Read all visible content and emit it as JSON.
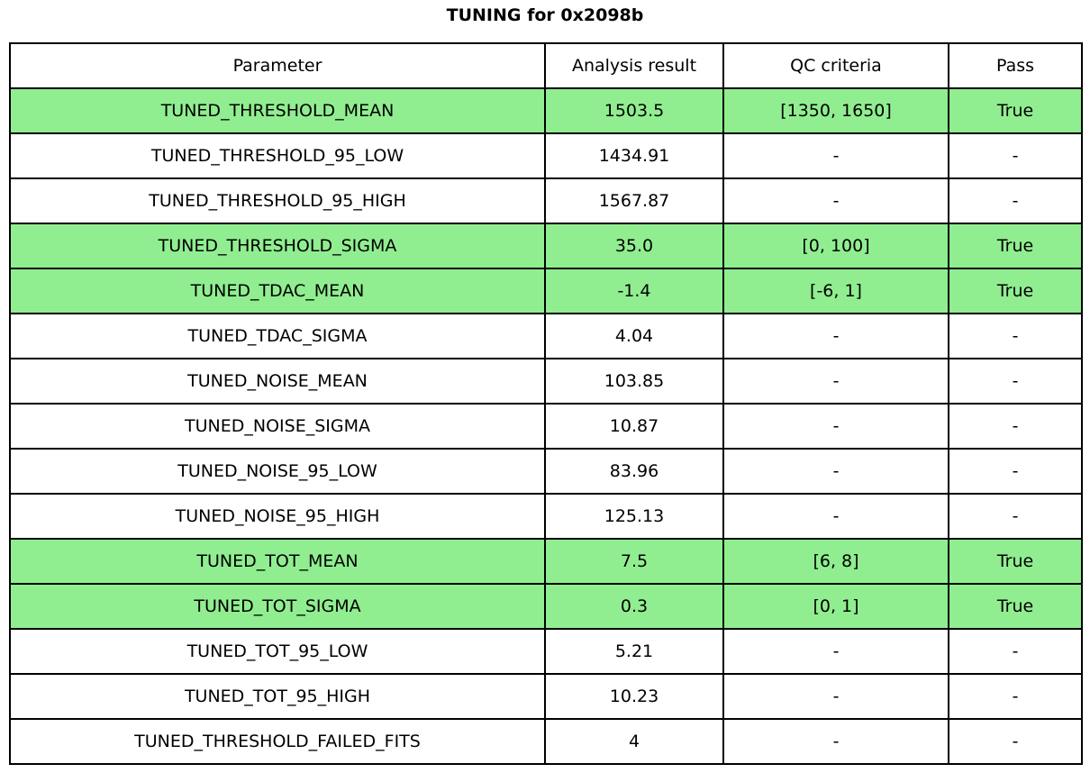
{
  "title": "TUNING for 0x2098b",
  "colors": {
    "highlight": "#90ee90",
    "border": "#000000",
    "background": "#ffffff",
    "text": "#000000"
  },
  "chart_data": {
    "type": "table",
    "title": "TUNING for 0x2098b",
    "columns": [
      "Parameter",
      "Analysis result",
      "QC criteria",
      "Pass"
    ],
    "rows": [
      {
        "parameter": "TUNED_THRESHOLD_MEAN",
        "result": "1503.5",
        "criteria": "[1350, 1650]",
        "pass": "True",
        "highlight": true
      },
      {
        "parameter": "TUNED_THRESHOLD_95_LOW",
        "result": "1434.91",
        "criteria": "-",
        "pass": "-",
        "highlight": false
      },
      {
        "parameter": "TUNED_THRESHOLD_95_HIGH",
        "result": "1567.87",
        "criteria": "-",
        "pass": "-",
        "highlight": false
      },
      {
        "parameter": "TUNED_THRESHOLD_SIGMA",
        "result": "35.0",
        "criteria": "[0, 100]",
        "pass": "True",
        "highlight": true
      },
      {
        "parameter": "TUNED_TDAC_MEAN",
        "result": "-1.4",
        "criteria": "[-6, 1]",
        "pass": "True",
        "highlight": true
      },
      {
        "parameter": "TUNED_TDAC_SIGMA",
        "result": "4.04",
        "criteria": "-",
        "pass": "-",
        "highlight": false
      },
      {
        "parameter": "TUNED_NOISE_MEAN",
        "result": "103.85",
        "criteria": "-",
        "pass": "-",
        "highlight": false
      },
      {
        "parameter": "TUNED_NOISE_SIGMA",
        "result": "10.87",
        "criteria": "-",
        "pass": "-",
        "highlight": false
      },
      {
        "parameter": "TUNED_NOISE_95_LOW",
        "result": "83.96",
        "criteria": "-",
        "pass": "-",
        "highlight": false
      },
      {
        "parameter": "TUNED_NOISE_95_HIGH",
        "result": "125.13",
        "criteria": "-",
        "pass": "-",
        "highlight": false
      },
      {
        "parameter": "TUNED_TOT_MEAN",
        "result": "7.5",
        "criteria": "[6, 8]",
        "pass": "True",
        "highlight": true
      },
      {
        "parameter": "TUNED_TOT_SIGMA",
        "result": "0.3",
        "criteria": "[0, 1]",
        "pass": "True",
        "highlight": true
      },
      {
        "parameter": "TUNED_TOT_95_LOW",
        "result": "5.21",
        "criteria": "-",
        "pass": "-",
        "highlight": false
      },
      {
        "parameter": "TUNED_TOT_95_HIGH",
        "result": "10.23",
        "criteria": "-",
        "pass": "-",
        "highlight": false
      },
      {
        "parameter": "TUNED_THRESHOLD_FAILED_FITS",
        "result": "4",
        "criteria": "-",
        "pass": "-",
        "highlight": false
      }
    ]
  }
}
